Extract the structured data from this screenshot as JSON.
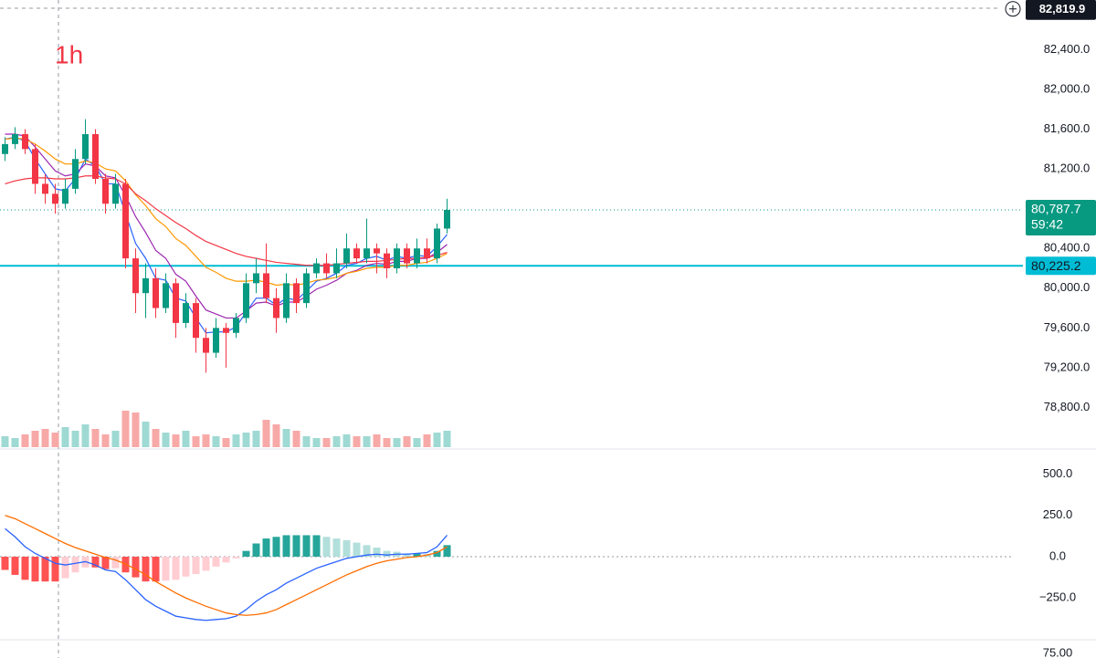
{
  "chart_data": {
    "type": "candlestick",
    "interval_label": "1h",
    "open": [
      81350,
      81450,
      81550,
      81400,
      81050,
      80950,
      80850,
      81000,
      81300,
      81550,
      81100,
      80850,
      81050,
      80300,
      79950,
      80100,
      79800,
      80050,
      79650,
      79850,
      79500,
      79350,
      79600,
      79550,
      79700,
      80050,
      80150,
      79900,
      79700,
      80050,
      79850,
      80150,
      80250,
      80150,
      80250,
      80400,
      80300,
      80400,
      80350,
      80200,
      80400,
      80250,
      80400,
      80300,
      80600
    ],
    "high": [
      81520,
      81620,
      81600,
      81450,
      81150,
      81050,
      81100,
      81400,
      81700,
      81600,
      81150,
      81150,
      81100,
      80400,
      80250,
      80200,
      80150,
      80100,
      79950,
      79900,
      79600,
      79700,
      79650,
      79750,
      80150,
      80300,
      80450,
      80000,
      80150,
      80100,
      80200,
      80300,
      80350,
      80400,
      80550,
      80450,
      80700,
      80450,
      80400,
      80450,
      80450,
      80500,
      80500,
      80650,
      80900
    ],
    "low": [
      81280,
      81400,
      81350,
      80950,
      80850,
      80750,
      80800,
      80950,
      81250,
      81050,
      80750,
      80800,
      80200,
      79750,
      79700,
      79700,
      79750,
      79500,
      79600,
      79350,
      79150,
      79300,
      79200,
      79500,
      79650,
      79950,
      79850,
      79550,
      79650,
      79750,
      79800,
      80100,
      80100,
      80100,
      80200,
      80250,
      80250,
      80150,
      80100,
      80150,
      80200,
      80200,
      80250,
      80250,
      80550
    ],
    "close": [
      81450,
      81550,
      81400,
      81050,
      80950,
      80850,
      81000,
      81300,
      81550,
      81100,
      80850,
      81050,
      80300,
      79950,
      80100,
      79800,
      80050,
      79650,
      79850,
      79500,
      79350,
      79600,
      79550,
      79700,
      80050,
      80150,
      79900,
      79700,
      80050,
      79850,
      80150,
      80250,
      80150,
      80250,
      80400,
      80300,
      80400,
      80350,
      80200,
      80400,
      80250,
      80400,
      80300,
      80600,
      80787.7
    ],
    "volume": [
      12,
      10,
      14,
      18,
      20,
      16,
      22,
      18,
      25,
      20,
      14,
      18,
      40,
      38,
      28,
      20,
      16,
      14,
      18,
      12,
      14,
      12,
      10,
      14,
      16,
      18,
      30,
      25,
      20,
      18,
      12,
      10,
      10,
      12,
      14,
      12,
      12,
      14,
      10,
      10,
      12,
      10,
      14,
      16,
      18
    ],
    "up_color": "#089981",
    "down_color": "#f23645",
    "moving_averages": [
      {
        "color": "#2962ff",
        "values": [
          81500,
          81520,
          81480,
          81300,
          81150,
          81000,
          80980,
          81100,
          81300,
          81230,
          81050,
          81050,
          80750,
          80450,
          80300,
          80100,
          80080,
          79900,
          79870,
          79700,
          79550,
          79560,
          79560,
          79610,
          79760,
          79900,
          79900,
          79830,
          79900,
          79880,
          79970,
          80070,
          80100,
          80150,
          80230,
          80250,
          80300,
          80320,
          80280,
          80320,
          80300,
          80330,
          80320,
          80420,
          80540
        ]
      },
      {
        "color": "#9c27b0",
        "values": [
          81550,
          81550,
          81530,
          81420,
          81300,
          81180,
          81130,
          81150,
          81250,
          81230,
          81130,
          81110,
          80930,
          80720,
          80560,
          80380,
          80300,
          80140,
          80070,
          79920,
          79780,
          79740,
          79700,
          79700,
          79770,
          79850,
          79860,
          79820,
          79860,
          79860,
          79920,
          79990,
          80030,
          80080,
          80150,
          80180,
          80230,
          80250,
          80240,
          80270,
          80270,
          80300,
          80300,
          80360,
          80440
        ]
      },
      {
        "color": "#ff9800",
        "values": [
          81500,
          81510,
          81500,
          81450,
          81380,
          81300,
          81250,
          81250,
          81280,
          81260,
          81200,
          81180,
          81080,
          80940,
          80830,
          80700,
          80620,
          80500,
          80430,
          80320,
          80210,
          80160,
          80100,
          80070,
          80070,
          80080,
          80060,
          80030,
          80040,
          80030,
          80050,
          80080,
          80090,
          80110,
          80150,
          80170,
          80200,
          80210,
          80210,
          80230,
          80230,
          80250,
          80260,
          80300,
          80350
        ]
      },
      {
        "color": "#f23645",
        "values": [
          81050,
          81080,
          81100,
          81110,
          81110,
          81100,
          81100,
          81110,
          81130,
          81130,
          81110,
          81100,
          81050,
          80950,
          80880,
          80800,
          80730,
          80660,
          80600,
          80530,
          80470,
          80430,
          80390,
          80350,
          80320,
          80300,
          80280,
          80260,
          80250,
          80240,
          80230,
          80230,
          80230,
          80240,
          80250,
          80260,
          80270,
          80270,
          80280,
          80290,
          80300,
          80300,
          80310,
          80330,
          80360
        ]
      }
    ],
    "ylim": [
      78400,
      82900
    ],
    "yticks": [
      {
        "value": 82400,
        "label": "82,400.0"
      },
      {
        "value": 82000,
        "label": "82,000.0"
      },
      {
        "value": 81600,
        "label": "81,600.0"
      },
      {
        "value": 81200,
        "label": "81,200.0"
      },
      {
        "value": 80400,
        "label": "80,400.0"
      },
      {
        "value": 80000,
        "label": "80,000.0"
      },
      {
        "value": 79600,
        "label": "79,600.0"
      },
      {
        "value": 79200,
        "label": "79,200.0"
      },
      {
        "value": 78800,
        "label": "78,800.0"
      }
    ],
    "crosshair_price": {
      "value": 82819.9,
      "label": "82,819.9"
    },
    "last_price": {
      "value": 80787.7,
      "label": "80,787.7"
    },
    "countdown": "59:42",
    "horizontal_line": {
      "value": 80225.2,
      "label": "80,225.2",
      "color": "#00bcd4"
    },
    "macd": {
      "macd_color": "#2962ff",
      "signal_color": "#ff6d00",
      "macd": [
        170,
        120,
        60,
        20,
        -10,
        -40,
        -50,
        -40,
        -30,
        -50,
        -80,
        -90,
        -140,
        -200,
        -260,
        -300,
        -330,
        -360,
        -370,
        -380,
        -385,
        -380,
        -375,
        -360,
        -320,
        -270,
        -230,
        -200,
        -160,
        -130,
        -100,
        -70,
        -50,
        -30,
        -10,
        0,
        10,
        15,
        10,
        15,
        15,
        20,
        25,
        60,
        130
      ],
      "signal": [
        250,
        230,
        200,
        170,
        140,
        110,
        80,
        55,
        35,
        15,
        -5,
        -20,
        -45,
        -75,
        -110,
        -150,
        -185,
        -220,
        -250,
        -275,
        -300,
        -320,
        -340,
        -350,
        -355,
        -350,
        -340,
        -320,
        -290,
        -260,
        -230,
        -200,
        -170,
        -140,
        -110,
        -85,
        -60,
        -40,
        -25,
        -15,
        -5,
        0,
        10,
        25,
        60
      ],
      "histogram": [
        -80,
        -110,
        -140,
        -150,
        -150,
        -150,
        -130,
        -95,
        -65,
        -65,
        -75,
        -70,
        -95,
        -125,
        -150,
        -150,
        -145,
        -140,
        -120,
        -105,
        -85,
        -60,
        -35,
        -10,
        35,
        80,
        110,
        120,
        130,
        130,
        130,
        130,
        120,
        110,
        100,
        85,
        70,
        55,
        35,
        30,
        20,
        20,
        15,
        35,
        70
      ],
      "ylim": [
        -497,
        646
      ],
      "yticks": [
        {
          "value": 500,
          "label": "500.0"
        },
        {
          "value": 250,
          "label": "250.0"
        },
        {
          "value": 0,
          "label": "0.0"
        },
        {
          "value": -250,
          "label": "−250.0"
        }
      ]
    },
    "third_pane_ticks": [
      {
        "value": 75,
        "label": "75.00"
      }
    ]
  }
}
